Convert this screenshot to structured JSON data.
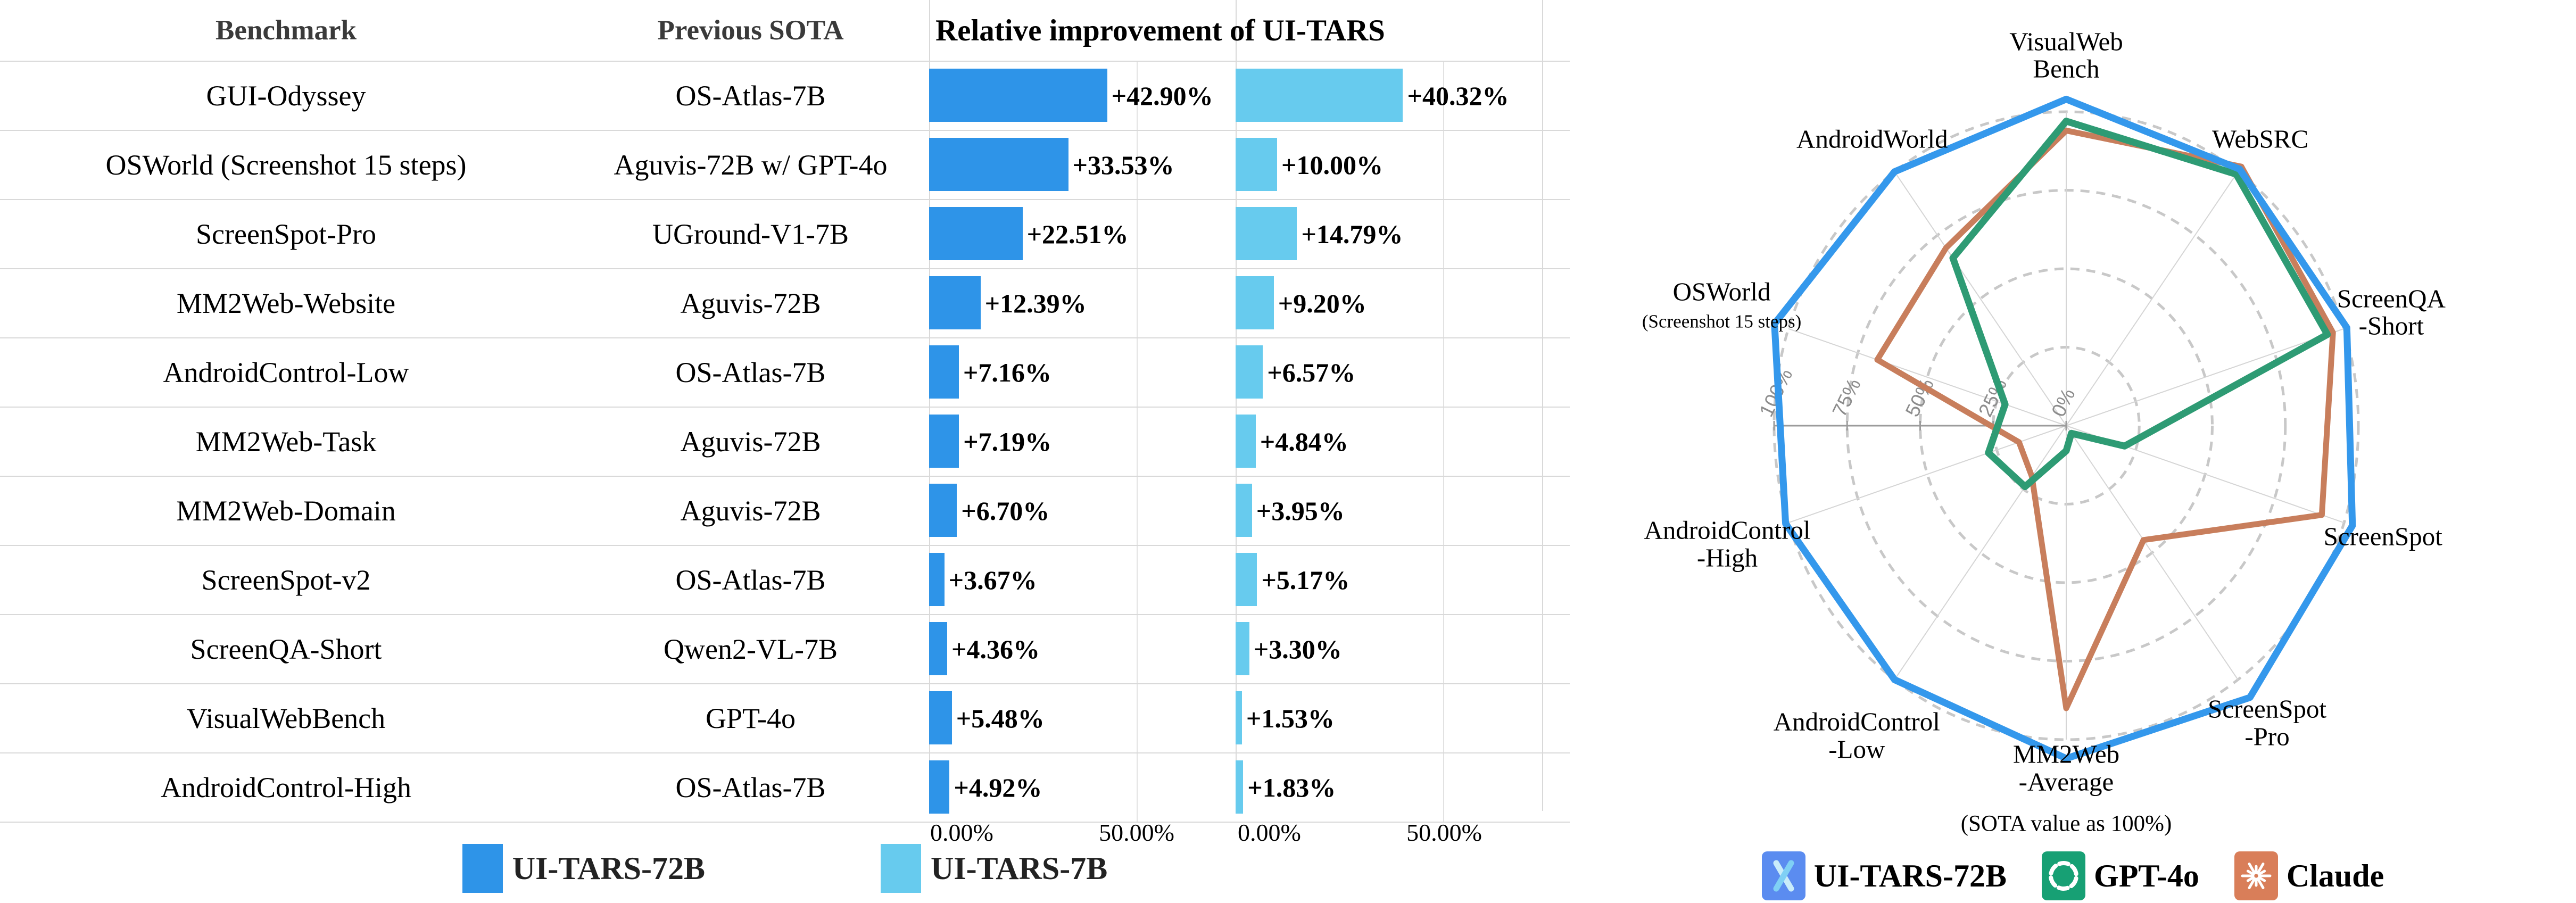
{
  "ui": {
    "table_headers": {
      "benchmark": "Benchmark",
      "previous_sota": "Previous SOTA",
      "improvement": "Relative improvement of UI-TARS"
    },
    "bar_axis": {
      "tick_zero": "0.00%",
      "tick_fifty": "50.00%"
    },
    "bar_legend": [
      {
        "label": "UI-TARS-72B",
        "color": "#2e94e8"
      },
      {
        "label": "UI-TARS-7B",
        "color": "#67cbee"
      }
    ],
    "radar_caption": "(SOTA value as 100%)",
    "radar_legend": [
      {
        "label": "UI-TARS-72B",
        "color": "#5b8cf0",
        "icon": "ui-tars-logo"
      },
      {
        "label": "GPT-4o",
        "color": "#17a074",
        "icon": "openai-logo"
      },
      {
        "label": "Claude",
        "color": "#d97e59",
        "icon": "claude-logo"
      }
    ]
  },
  "chart_data": [
    {
      "type": "bar",
      "title": "Relative improvement of UI-TARS",
      "orientation": "horizontal",
      "categories": [
        "GUI-Odyssey",
        "OSWorld (Screenshot 15 steps)",
        "ScreenSpot-Pro",
        "MM2Web-Website",
        "AndroidControl-Low",
        "MM2Web-Task",
        "MM2Web-Domain",
        "ScreenSpot-v2",
        "ScreenQA-Short",
        "VisualWebBench",
        "AndroidControl-High"
      ],
      "previous_sota": [
        "OS-Atlas-7B",
        "Aguvis-72B w/ GPT-4o",
        "UGround-V1-7B",
        "Aguvis-72B",
        "OS-Atlas-7B",
        "Aguvis-72B",
        "Aguvis-72B",
        "OS-Atlas-7B",
        "Qwen2-VL-7B",
        "GPT-4o",
        "OS-Atlas-7B"
      ],
      "series": [
        {
          "name": "UI-TARS-72B",
          "color": "#2e94e8",
          "values": [
            42.9,
            33.53,
            22.51,
            12.39,
            7.16,
            7.19,
            6.7,
            3.67,
            4.36,
            5.48,
            4.92
          ]
        },
        {
          "name": "UI-TARS-7B",
          "color": "#67cbee",
          "values": [
            40.32,
            10.0,
            14.79,
            9.2,
            6.57,
            4.84,
            3.95,
            5.17,
            3.3,
            1.53,
            1.83
          ]
        }
      ],
      "xlabel": "",
      "ylabel": "",
      "xlim": [
        0,
        75
      ],
      "xticks": [
        "0.00%",
        "50.00%"
      ],
      "grid": "vertical at 0% and 50%"
    },
    {
      "type": "radar",
      "note": "(SOTA value as 100%)",
      "rticks": [
        "0%",
        "25%",
        "50%",
        "75%",
        "100%"
      ],
      "rmax": 110,
      "categories": [
        {
          "name": "VisualWebBench",
          "angle": 90,
          "lines": [
            "VisualWeb",
            "Bench"
          ],
          "sub": "",
          "lr": 1.18
        },
        {
          "name": "WebSRC",
          "angle": 54,
          "lines": [
            "WebSRC"
          ],
          "sub": "",
          "lr": 1.13
        },
        {
          "name": "ScreenQA-Short",
          "angle": 18,
          "lines": [
            "ScreenQA",
            "-Short"
          ],
          "sub": "",
          "lr": 1.17
        },
        {
          "name": "ScreenSpot",
          "angle": -18,
          "lines": [
            "ScreenSpot"
          ],
          "sub": "",
          "lr": 1.14
        },
        {
          "name": "ScreenSpot-Pro",
          "angle": -54,
          "lines": [
            "ScreenSpot",
            "-Pro"
          ],
          "sub": "",
          "lr": 1.17
        },
        {
          "name": "MM2Web-Average",
          "angle": -90,
          "lines": [
            "MM2Web",
            "-Average"
          ],
          "sub": "",
          "lr": 1.09
        },
        {
          "name": "AndroidControl-Low",
          "angle": -126,
          "lines": [
            "AndroidControl",
            "-Low"
          ],
          "sub": "",
          "lr": 1.22
        },
        {
          "name": "AndroidControl-High",
          "angle": -162,
          "lines": [
            "AndroidControl",
            "-High"
          ],
          "sub": "",
          "lr": 1.22
        },
        {
          "name": "OSWorld",
          "angle": 162,
          "lines": [
            "OSWorld"
          ],
          "sub": "(Screenshot 15 steps)",
          "lr": 1.24
        },
        {
          "name": "AndroidWorld",
          "angle": 126,
          "lines": [
            "AndroidWorld"
          ],
          "sub": "",
          "lr": 1.13
        }
      ],
      "series": [
        {
          "name": "UI-TARS-72B",
          "color": "#3498ec",
          "width": 13,
          "values": [
            104,
            101,
            101,
            103,
            107,
            106,
            100,
            101,
            105,
            100
          ]
        },
        {
          "name": "GPT-4o",
          "color": "#2e9b74",
          "width": 13,
          "values": [
            97,
            99,
            94,
            21,
            3,
            8,
            24,
            28,
            22,
            66
          ]
        },
        {
          "name": "Claude",
          "color": "#c87e5c",
          "width": 11,
          "values": [
            94,
            102,
            96,
            92,
            45,
            90,
            20,
            17,
            68,
            70
          ]
        }
      ],
      "legend_position": "bottom"
    }
  ]
}
